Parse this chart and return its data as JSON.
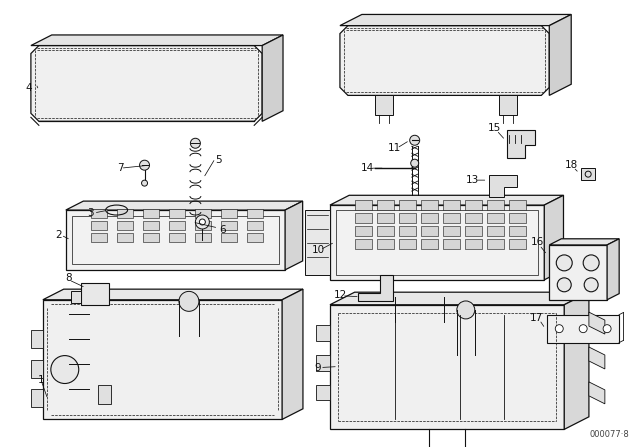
{
  "background_color": "#ffffff",
  "line_color": "#111111",
  "label_color": "#111111",
  "watermark": "000077·8",
  "fig_width": 6.4,
  "fig_height": 4.48,
  "dpi": 100
}
